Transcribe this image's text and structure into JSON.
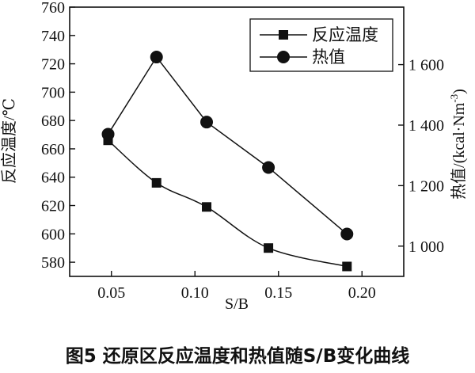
{
  "chart_data": {
    "type": "line",
    "caption": "图5  还原区反应温度和热值随S/B变化曲线",
    "xlabel": "S/B",
    "ylabel_left": "反应温度/℃",
    "ylabel_right_prefix": "热值/(kcal·Nm",
    "ylabel_right_sup": "-3",
    "ylabel_right_suffix": ")",
    "xlim": [
      0.025,
      0.225
    ],
    "ylim_left": [
      570,
      760
    ],
    "ylim_right": [
      900,
      1790
    ],
    "x_ticks": [
      0.05,
      0.1,
      0.15,
      0.2
    ],
    "x_tick_labels": [
      "0.05",
      "0.10",
      "0.15",
      "0.20"
    ],
    "y_left_ticks": [
      580,
      600,
      620,
      640,
      660,
      680,
      700,
      720,
      740,
      760
    ],
    "y_right_ticks": [
      1000,
      1200,
      1400,
      1600
    ],
    "y_right_tick_labels": [
      "1 000",
      "1 200",
      "1 400",
      "1 600"
    ],
    "legend_position": "top-right",
    "series": [
      {
        "name": "反应温度",
        "marker": "square",
        "axis": "left",
        "x": [
          0.048,
          0.077,
          0.107,
          0.144,
          0.191
        ],
        "values": [
          666,
          636,
          619,
          590,
          577
        ]
      },
      {
        "name": "热值",
        "marker": "circle",
        "axis": "right",
        "x": [
          0.048,
          0.077,
          0.107,
          0.144,
          0.191
        ],
        "values": [
          1370,
          1625,
          1410,
          1260,
          1040
        ]
      }
    ]
  }
}
